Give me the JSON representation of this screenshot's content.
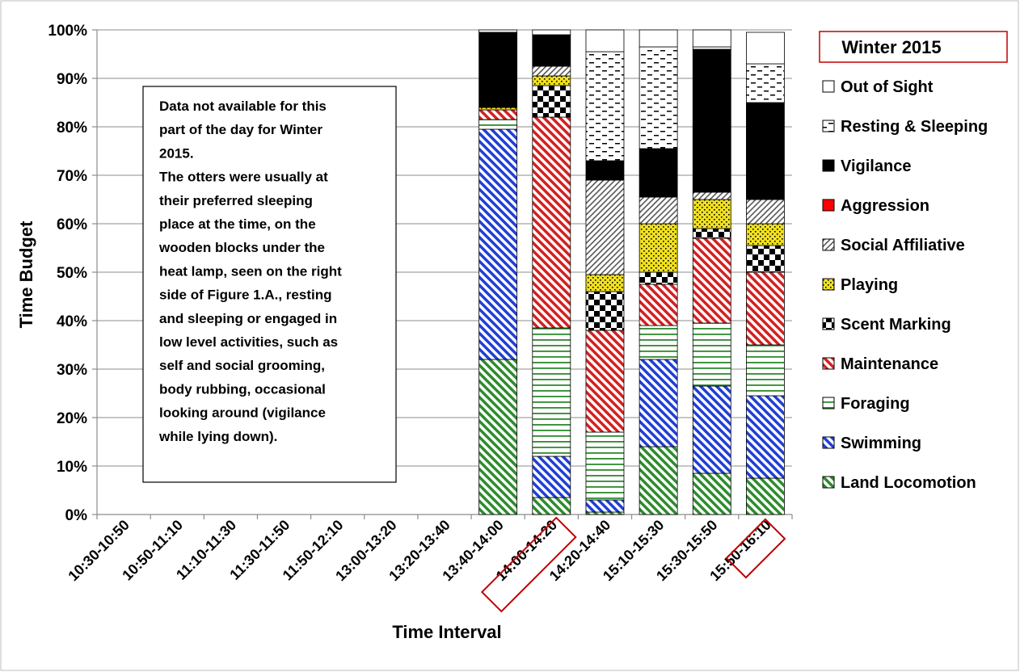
{
  "chart_data": {
    "type": "bar",
    "stacked": true,
    "percent": true,
    "legend_title": "Winter 2015",
    "xlabel": "Time Interval",
    "ylabel": "Time Budget",
    "ylim": [
      0,
      100
    ],
    "y_ticks": [
      "0%",
      "10%",
      "20%",
      "30%",
      "40%",
      "50%",
      "60%",
      "70%",
      "80%",
      "90%",
      "100%"
    ],
    "grid": true,
    "legend_position": "right",
    "categories": [
      "10:30-10:50",
      "10:50-11:10",
      "11:10-11:30",
      "11:30-11:50",
      "11:50-12:10",
      "13:00-13:20",
      "13:20-13:40",
      "13:40-14:00",
      "14:00-14:20",
      "14:20-14:40",
      "15:10-15:30",
      "15:30-15:50",
      "15:50-16:10"
    ],
    "highlighted_labels": [
      "14:00-14:20",
      "16:10"
    ],
    "highlight_color": "#c00000",
    "note": [
      "Data not available for this",
      "part of the day for Winter",
      "2015.",
      "The otters were usually at",
      "their preferred sleeping",
      "place at the time, on the",
      "wooden blocks under the",
      "heat lamp, seen on the right",
      "side of Figure 1.A., resting",
      "and sleeping or engaged in",
      "low level activities, such as",
      "self and social grooming,",
      "body rubbing, occasional",
      "looking around (vigilance",
      "while lying down)."
    ],
    "series": [
      {
        "name": "Land Locomotion",
        "color": "#2e8b2e",
        "pattern": "diag-green",
        "values": [
          null,
          null,
          null,
          null,
          null,
          null,
          null,
          32,
          3.5,
          0.5,
          14,
          8.5,
          7.5
        ]
      },
      {
        "name": "Swimming",
        "color": "#1f3fd6",
        "pattern": "diag-blue",
        "values": [
          null,
          null,
          null,
          null,
          null,
          null,
          null,
          47.5,
          8.5,
          2.5,
          18,
          18,
          17
        ]
      },
      {
        "name": "Foraging",
        "color": "#2e8b2e",
        "pattern": "hline-green",
        "values": [
          null,
          null,
          null,
          null,
          null,
          null,
          null,
          2,
          26.5,
          14,
          7,
          13,
          10.5
        ]
      },
      {
        "name": "Maintenance",
        "color": "#d42020",
        "pattern": "diag-red",
        "values": [
          null,
          null,
          null,
          null,
          null,
          null,
          null,
          2,
          43.5,
          21,
          8.5,
          17.5,
          15
        ]
      },
      {
        "name": "Scent Marking",
        "color": "#000000",
        "pattern": "checker",
        "values": [
          null,
          null,
          null,
          null,
          null,
          null,
          null,
          0,
          6.5,
          8,
          2.5,
          2,
          5.5
        ]
      },
      {
        "name": "Playing",
        "color": "#f0e020",
        "pattern": "dots-yellow",
        "values": [
          null,
          null,
          null,
          null,
          null,
          null,
          null,
          0.5,
          2,
          3.5,
          10,
          6,
          4.5
        ]
      },
      {
        "name": "Social Affiliative",
        "color": "#555555",
        "pattern": "diag-gray",
        "values": [
          null,
          null,
          null,
          null,
          null,
          null,
          null,
          0,
          2,
          19.5,
          5.5,
          1.5,
          5
        ]
      },
      {
        "name": "Aggression",
        "color": "#ff0000",
        "pattern": "solid-red",
        "values": [
          null,
          null,
          null,
          null,
          null,
          null,
          null,
          0,
          0,
          0,
          0,
          0,
          0
        ]
      },
      {
        "name": "Vigilance",
        "color": "#000000",
        "pattern": "solid-black",
        "values": [
          null,
          null,
          null,
          null,
          null,
          null,
          null,
          15.5,
          6.5,
          4,
          10,
          29.5,
          20
        ]
      },
      {
        "name": "Resting & Sleeping",
        "color": "#000000",
        "pattern": "dashes",
        "values": [
          null,
          null,
          null,
          null,
          null,
          null,
          null,
          0,
          0,
          22.5,
          21,
          0.5,
          8
        ]
      },
      {
        "name": "Out of Sight",
        "color": "#ffffff",
        "pattern": "solid-white",
        "values": [
          null,
          null,
          null,
          null,
          null,
          null,
          null,
          0.5,
          1,
          4.5,
          3.5,
          3.5,
          6.5
        ]
      }
    ]
  }
}
